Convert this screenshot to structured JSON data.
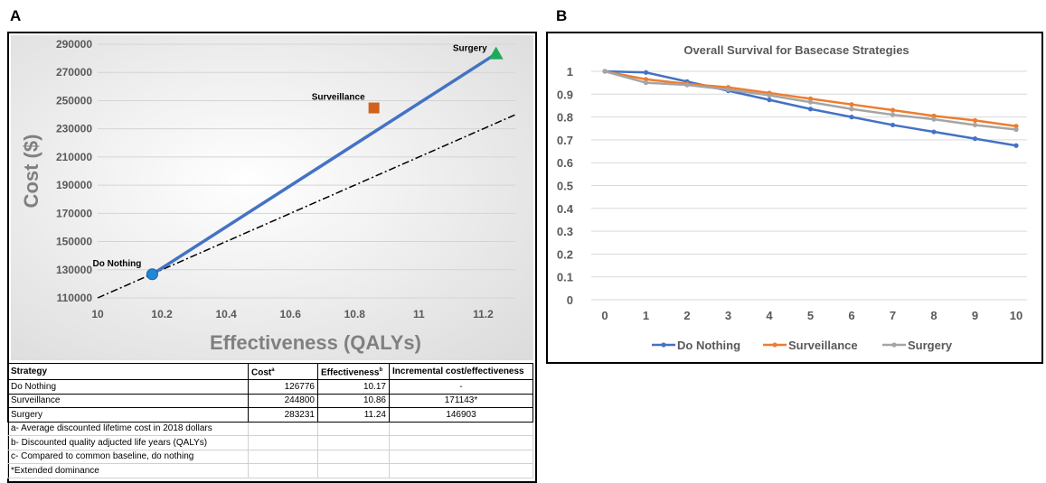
{
  "panel_labels": {
    "a": "A",
    "b": "B"
  },
  "chart_data": [
    {
      "type": "scatter",
      "title": "",
      "xlabel": "Effectiveness (QALYs)",
      "ylabel": "Cost ($)",
      "xlim": [
        10,
        11.3
      ],
      "ylim": [
        110000,
        290000
      ],
      "x_ticks": [
        "10",
        "10.2",
        "10.4",
        "10.6",
        "10.8",
        "11",
        "11.2"
      ],
      "y_ticks": [
        "110000",
        "130000",
        "150000",
        "170000",
        "190000",
        "210000",
        "230000",
        "250000",
        "270000",
        "290000"
      ],
      "grid": true,
      "points": [
        {
          "label": "Do Nothing",
          "x": 10.17,
          "y": 126776,
          "marker": "circle",
          "color": "#1e88d6"
        },
        {
          "label": "Surveillance",
          "x": 10.86,
          "y": 244800,
          "marker": "square",
          "color": "#d0621c"
        },
        {
          "label": "Surgery",
          "x": 11.24,
          "y": 283231,
          "marker": "triangle",
          "color": "#1eaa5a"
        }
      ],
      "frontier_line": {
        "from": [
          10.17,
          126776
        ],
        "to": [
          11.24,
          283231
        ],
        "color": "#4472c4"
      },
      "threshold_line": {
        "from": [
          10,
          110000
        ],
        "to": [
          11.3,
          240000
        ],
        "style": "dash-dot"
      }
    },
    {
      "type": "line",
      "title": "Overall Survival for Basecase Strategies",
      "xlabel": "",
      "ylabel": "",
      "x": [
        0,
        1,
        2,
        3,
        4,
        5,
        6,
        7,
        8,
        9,
        10
      ],
      "ylim": [
        0,
        1
      ],
      "y_ticks": [
        "0",
        "0.1",
        "0.2",
        "0.3",
        "0.4",
        "0.5",
        "0.6",
        "0.7",
        "0.8",
        "0.9",
        "1"
      ],
      "grid": true,
      "legend": "bottom",
      "series": [
        {
          "name": "Do Nothing",
          "color": "#4472c4",
          "values": [
            1.0,
            0.995,
            0.955,
            0.915,
            0.875,
            0.835,
            0.8,
            0.765,
            0.735,
            0.705,
            0.675
          ]
        },
        {
          "name": "Surveillance",
          "color": "#ed7d31",
          "values": [
            1.0,
            0.965,
            0.945,
            0.93,
            0.905,
            0.88,
            0.855,
            0.83,
            0.805,
            0.785,
            0.76
          ]
        },
        {
          "name": "Surgery",
          "color": "#a5a5a5",
          "values": [
            1.0,
            0.95,
            0.94,
            0.92,
            0.895,
            0.865,
            0.835,
            0.81,
            0.79,
            0.765,
            0.745
          ]
        }
      ]
    }
  ],
  "table": {
    "headers": [
      "Strategy",
      "Cost",
      "Effectiveness",
      "Incremental cost/effectiveness"
    ],
    "header_sup": [
      "",
      "a",
      "b",
      ""
    ],
    "rows": [
      [
        "Do Nothing",
        "126776",
        "10.17",
        "-"
      ],
      [
        "Surveillance",
        "244800",
        "10.86",
        "171143*"
      ],
      [
        "Surgery",
        "283231",
        "11.24",
        "146903"
      ]
    ],
    "footnotes": [
      "a- Average discounted lifetime cost in 2018 dollars",
      "b- Discounted quality adjucted life years (QALYs)",
      "c- Compared to common baseline, do nothing",
      "*Extended dominance"
    ]
  }
}
